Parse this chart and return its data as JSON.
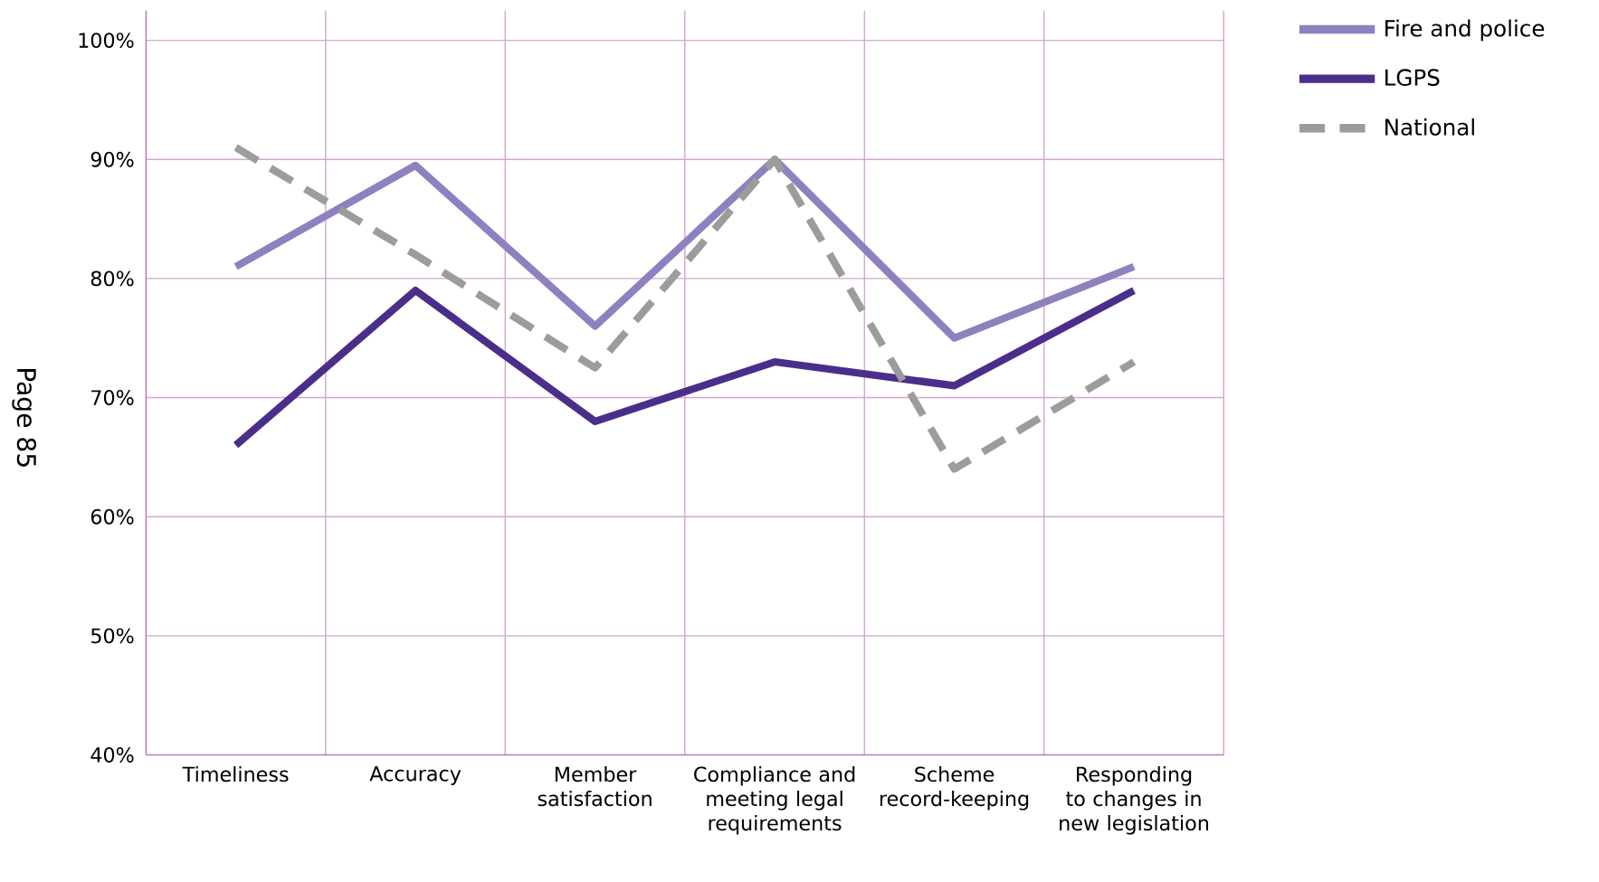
{
  "chart_data": {
    "type": "line",
    "categories": [
      "Timeliness",
      "Accuracy",
      "Member satisfaction",
      "Compliance and meeting legal requirements",
      "Scheme record-keeping",
      "Responding to changes in new legislation"
    ],
    "series": [
      {
        "name": "Fire and police",
        "color": "#8f80c0",
        "values": [
          81,
          89.5,
          76,
          90,
          75,
          81
        ]
      },
      {
        "name": "LGPS",
        "color": "#4b2e8a",
        "values": [
          66,
          79,
          68,
          73,
          71,
          79
        ]
      },
      {
        "name": "National",
        "color": "#9c9c9c",
        "line_style": "dashed",
        "values": [
          91,
          82,
          72.5,
          90,
          64,
          73
        ]
      }
    ],
    "ylim": [
      40,
      102.5
    ],
    "yticks": [
      {
        "value": 40,
        "label": "40%"
      },
      {
        "value": 50,
        "label": "50%"
      },
      {
        "value": 60,
        "label": "60%"
      },
      {
        "value": 70,
        "label": "70%"
      },
      {
        "value": 80,
        "label": "80%"
      },
      {
        "value": 90,
        "label": "90%"
      },
      {
        "value": 100,
        "label": "100%"
      }
    ],
    "grid": true,
    "legend": "top right",
    "line_style": "solid",
    "marker": "none",
    "annotations": [
      "Page 85"
    ]
  }
}
